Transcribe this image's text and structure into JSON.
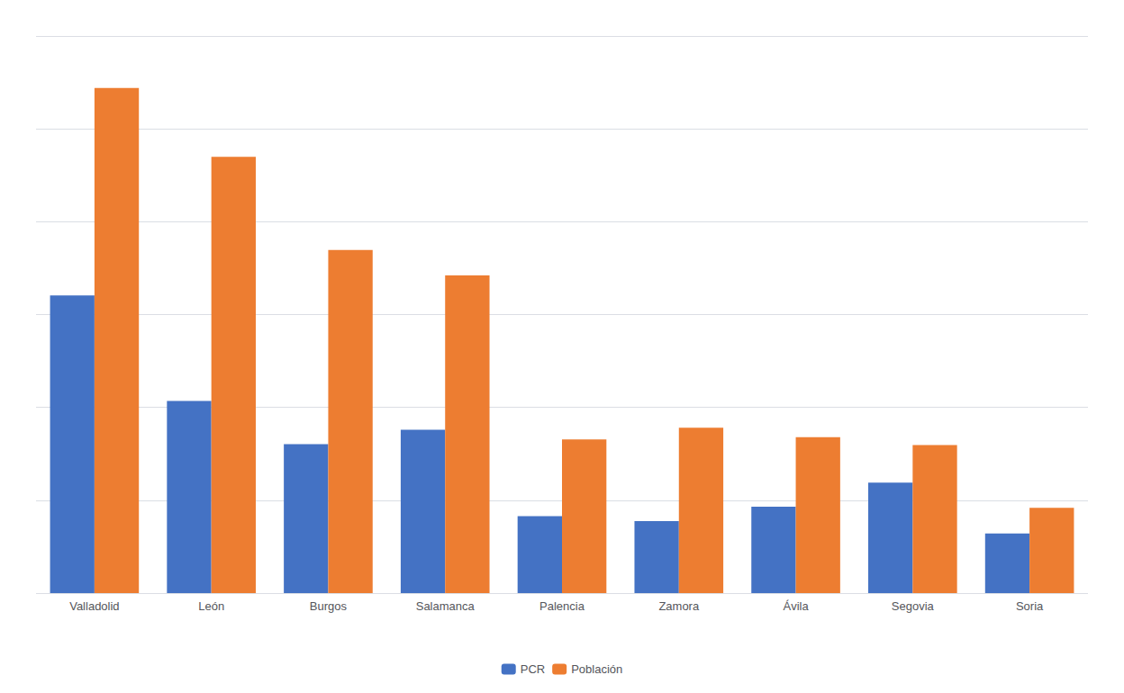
{
  "chart_data": {
    "type": "bar",
    "categories": [
      "Valladolid",
      "León",
      "Burgos",
      "Salamanca",
      "Palencia",
      "Zamora",
      "Ávila",
      "Segovia",
      "Soria"
    ],
    "series": [
      {
        "name": "PCR",
        "color": "#4472C4",
        "values": [
          310000,
          200000,
          155000,
          170000,
          80000,
          75000,
          90000,
          115000,
          62000
        ]
      },
      {
        "name": "Población",
        "color": "#ED7D31",
        "values": [
          525799,
          454098,
          357307,
          330782,
          160034,
          172284,
          162338,
          154187,
          88866
        ]
      }
    ],
    "ylim": [
      0,
      580000
    ],
    "yticks": [
      0,
      96666.66666666667,
      193333.33333333334,
      290000,
      386666.6666666667,
      483333.3333333333,
      580000
    ],
    "grid": true,
    "legend": "bottom",
    "tick_labels": "x"
  }
}
